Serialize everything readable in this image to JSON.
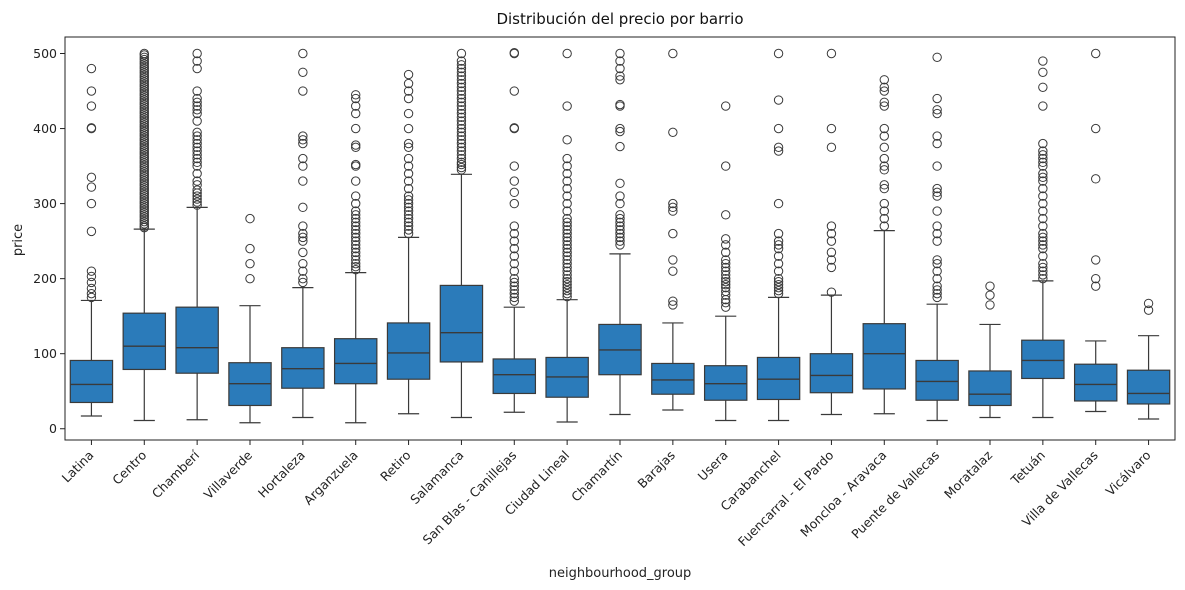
{
  "chart_data": {
    "type": "box",
    "title": "Distribución del precio por barrio",
    "xlabel": "neighbourhood_group",
    "ylabel": "price",
    "ylim": [
      -15,
      522
    ],
    "yticks": [
      0,
      100,
      200,
      300,
      400,
      500
    ],
    "grid": false,
    "legend": "none",
    "box_color": "#2b7bba",
    "line_color": "#3a3a3a",
    "categories": [
      "Latina",
      "Centro",
      "Chamberí",
      "Villaverde",
      "Hortaleza",
      "Arganzuela",
      "Retiro",
      "Salamanca",
      "San Blas - Canillejas",
      "Ciudad Lineal",
      "Chamartín",
      "Barajas",
      "Usera",
      "Carabanchel",
      "Fuencarral - El Pardo",
      "Moncloa - Aravaca",
      "Puente de Vallecas",
      "Moratalaz",
      "Tetuán",
      "Villa de Vallecas",
      "Vicálvaro"
    ],
    "boxes": [
      {
        "whislo": 17,
        "q1": 35,
        "med": 59,
        "q3": 91,
        "whishi": 171,
        "fliers": [
          175,
          180,
          187,
          195,
          203,
          210,
          263,
          300,
          322,
          335,
          400,
          401,
          430,
          450,
          480
        ]
      },
      {
        "whislo": 11,
        "q1": 79,
        "med": 110,
        "q3": 154,
        "whishi": 266,
        "fliers": [
          268,
          270,
          273,
          276,
          279,
          282,
          285,
          288,
          291,
          294,
          297,
          300,
          303,
          306,
          309,
          312,
          315,
          318,
          321,
          324,
          327,
          330,
          333,
          336,
          339,
          342,
          345,
          348,
          351,
          354,
          357,
          360,
          363,
          366,
          369,
          372,
          375,
          378,
          381,
          384,
          387,
          390,
          393,
          396,
          399,
          402,
          405,
          408,
          411,
          414,
          417,
          420,
          423,
          426,
          429,
          432,
          435,
          438,
          441,
          444,
          447,
          450,
          453,
          456,
          459,
          462,
          465,
          468,
          471,
          474,
          477,
          480,
          483,
          486,
          489,
          492,
          495,
          498,
          500
        ]
      },
      {
        "whislo": 12,
        "q1": 74,
        "med": 108,
        "q3": 162,
        "whishi": 295,
        "fliers": [
          298,
          302,
          306,
          310,
          314,
          318,
          325,
          330,
          340,
          350,
          355,
          360,
          365,
          370,
          375,
          380,
          385,
          390,
          395,
          410,
          420,
          425,
          430,
          435,
          440,
          450,
          480,
          490,
          500
        ]
      },
      {
        "whislo": 8,
        "q1": 31,
        "med": 60,
        "q3": 88,
        "whishi": 164,
        "fliers": [
          200,
          220,
          240,
          280
        ]
      },
      {
        "whislo": 15,
        "q1": 54,
        "med": 80,
        "q3": 108,
        "whishi": 188,
        "fliers": [
          195,
          200,
          210,
          220,
          235,
          250,
          255,
          260,
          270,
          295,
          330,
          350,
          360,
          380,
          385,
          390,
          450,
          475,
          500
        ]
      },
      {
        "whislo": 8,
        "q1": 60,
        "med": 87,
        "q3": 120,
        "whishi": 208,
        "fliers": [
          212,
          216,
          220,
          225,
          230,
          235,
          240,
          245,
          250,
          255,
          260,
          265,
          270,
          275,
          280,
          285,
          290,
          300,
          310,
          330,
          350,
          352,
          375,
          378,
          400,
          420,
          430,
          440,
          445
        ]
      },
      {
        "whislo": 20,
        "q1": 66,
        "med": 101,
        "q3": 141,
        "whishi": 255,
        "fliers": [
          260,
          265,
          270,
          275,
          280,
          285,
          290,
          295,
          300,
          305,
          310,
          320,
          330,
          340,
          350,
          360,
          375,
          380,
          400,
          420,
          440,
          450,
          460,
          472
        ]
      },
      {
        "whislo": 15,
        "q1": 89,
        "med": 128,
        "q3": 191,
        "whishi": 339,
        "fliers": [
          345,
          348,
          352,
          355,
          360,
          365,
          370,
          375,
          380,
          385,
          390,
          395,
          400,
          405,
          410,
          415,
          420,
          425,
          430,
          435,
          440,
          445,
          450,
          455,
          460,
          465,
          470,
          475,
          480,
          485,
          490,
          500
        ]
      },
      {
        "whislo": 22,
        "q1": 47,
        "med": 72,
        "q3": 93,
        "whishi": 162,
        "fliers": [
          170,
          175,
          180,
          185,
          190,
          195,
          200,
          210,
          220,
          230,
          240,
          250,
          260,
          270,
          300,
          315,
          330,
          350,
          400,
          401,
          450,
          500,
          501
        ]
      },
      {
        "whislo": 9,
        "q1": 42,
        "med": 69,
        "q3": 95,
        "whishi": 172,
        "fliers": [
          176,
          180,
          184,
          188,
          192,
          196,
          200,
          205,
          210,
          215,
          220,
          225,
          230,
          235,
          240,
          245,
          250,
          255,
          260,
          265,
          270,
          275,
          280,
          290,
          300,
          310,
          320,
          330,
          340,
          350,
          360,
          385,
          430,
          500
        ]
      },
      {
        "whislo": 19,
        "q1": 72,
        "med": 105,
        "q3": 139,
        "whishi": 233,
        "fliers": [
          245,
          250,
          255,
          260,
          265,
          270,
          275,
          280,
          285,
          300,
          310,
          327,
          376,
          396,
          400,
          430,
          432,
          465,
          470,
          480,
          490,
          500
        ]
      },
      {
        "whislo": 25,
        "q1": 46,
        "med": 65,
        "q3": 87,
        "whishi": 141,
        "fliers": [
          165,
          170,
          210,
          225,
          260,
          290,
          295,
          300,
          395,
          500
        ]
      },
      {
        "whislo": 11,
        "q1": 38,
        "med": 60,
        "q3": 84,
        "whishi": 150,
        "fliers": [
          162,
          168,
          172,
          178,
          183,
          188,
          192,
          196,
          200,
          205,
          210,
          215,
          220,
          225,
          235,
          245,
          253,
          285,
          350,
          430
        ]
      },
      {
        "whislo": 11,
        "q1": 39,
        "med": 66,
        "q3": 95,
        "whishi": 175,
        "fliers": [
          180,
          184,
          188,
          192,
          196,
          200,
          210,
          220,
          230,
          240,
          245,
          250,
          260,
          300,
          370,
          375,
          400,
          438,
          500
        ]
      },
      {
        "whislo": 19,
        "q1": 48,
        "med": 71,
        "q3": 100,
        "whishi": 178,
        "fliers": [
          182,
          215,
          225,
          235,
          250,
          260,
          270,
          375,
          400,
          500
        ]
      },
      {
        "whislo": 20,
        "q1": 53,
        "med": 100,
        "q3": 140,
        "whishi": 264,
        "fliers": [
          270,
          280,
          290,
          300,
          320,
          325,
          345,
          350,
          360,
          375,
          390,
          400,
          430,
          435,
          450,
          455,
          465
        ]
      },
      {
        "whislo": 11,
        "q1": 38,
        "med": 63,
        "q3": 91,
        "whishi": 166,
        "fliers": [
          175,
          180,
          185,
          190,
          200,
          210,
          220,
          225,
          250,
          260,
          270,
          290,
          310,
          315,
          320,
          350,
          380,
          390,
          420,
          425,
          440,
          495
        ]
      },
      {
        "whislo": 15,
        "q1": 31,
        "med": 46,
        "q3": 77,
        "whishi": 139,
        "fliers": [
          165,
          178,
          190
        ]
      },
      {
        "whislo": 15,
        "q1": 67,
        "med": 91,
        "q3": 118,
        "whishi": 197,
        "fliers": [
          200,
          205,
          210,
          215,
          220,
          230,
          240,
          245,
          250,
          255,
          260,
          270,
          280,
          290,
          300,
          310,
          320,
          330,
          335,
          340,
          350,
          355,
          360,
          365,
          370,
          380,
          430,
          455,
          475,
          490
        ]
      },
      {
        "whislo": 23,
        "q1": 37,
        "med": 59,
        "q3": 86,
        "whishi": 117,
        "fliers": [
          190,
          200,
          225,
          333,
          400,
          500
        ]
      },
      {
        "whislo": 13,
        "q1": 33,
        "med": 47,
        "q3": 78,
        "whishi": 124,
        "fliers": [
          158,
          167
        ]
      }
    ]
  }
}
